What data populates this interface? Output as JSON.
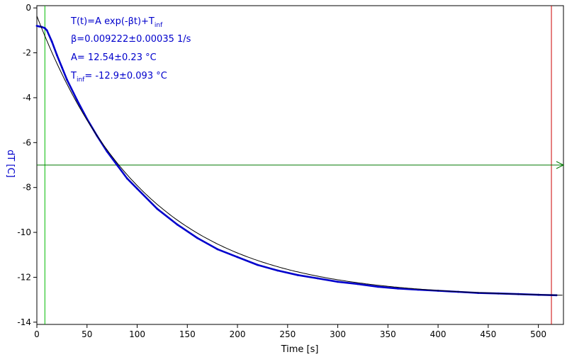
{
  "chart_data": {
    "type": "line",
    "xlabel": "Time [s]",
    "ylabel": "dT [C]",
    "xlim": [
      0,
      525
    ],
    "ylim": [
      -14.1,
      0.1
    ],
    "x_ticks": [
      0,
      50,
      100,
      150,
      200,
      250,
      300,
      350,
      400,
      450,
      500
    ],
    "y_ticks": [
      0,
      -2,
      -4,
      -6,
      -8,
      -10,
      -12,
      -14
    ],
    "annotations": {
      "line1_main": "T(t)=A exp(-βt)+T",
      "line1_sub": "inf",
      "line2": "β=0.009222±0.00035 1/s",
      "line3": "A= 12.54±0.23 °C",
      "line4_main": "T",
      "line4_sub": "inf",
      "line4_rest": "= -12.9±0.093 °C"
    },
    "series": [
      {
        "role": "measured",
        "color": "#0000cc",
        "x": [
          0,
          2,
          5,
          8,
          10,
          15,
          20,
          25,
          30,
          40,
          50,
          60,
          70,
          80,
          90,
          100,
          120,
          140,
          160,
          180,
          200,
          220,
          240,
          260,
          280,
          300,
          320,
          340,
          360,
          380,
          400,
          420,
          440,
          460,
          480,
          500,
          518
        ],
        "y": [
          -0.8,
          -0.82,
          -0.85,
          -0.9,
          -1.0,
          -1.5,
          -2.1,
          -2.65,
          -3.2,
          -4.1,
          -4.95,
          -5.7,
          -6.4,
          -7.0,
          -7.6,
          -8.05,
          -8.95,
          -9.65,
          -10.25,
          -10.75,
          -11.1,
          -11.45,
          -11.7,
          -11.9,
          -12.05,
          -12.2,
          -12.3,
          -12.42,
          -12.5,
          -12.55,
          -12.6,
          -12.65,
          -12.7,
          -12.72,
          -12.75,
          -12.78,
          -12.8
        ]
      },
      {
        "role": "fit",
        "color": "#000000",
        "fit": {
          "A": 12.54,
          "beta": 0.009222,
          "T_inf": -12.9
        },
        "x_range": [
          0,
          525
        ]
      }
    ],
    "cursors": {
      "vertical_green_x": 8,
      "vertical_red_x": 513,
      "horizontal_green_y": -7.0
    },
    "colors": {
      "axis": "#000000",
      "ylabel": "#0000cc",
      "annotation": "#0000cc",
      "cursor_green": "#00bb00",
      "cursor_red": "#cc0000",
      "hline": "#007700"
    }
  }
}
